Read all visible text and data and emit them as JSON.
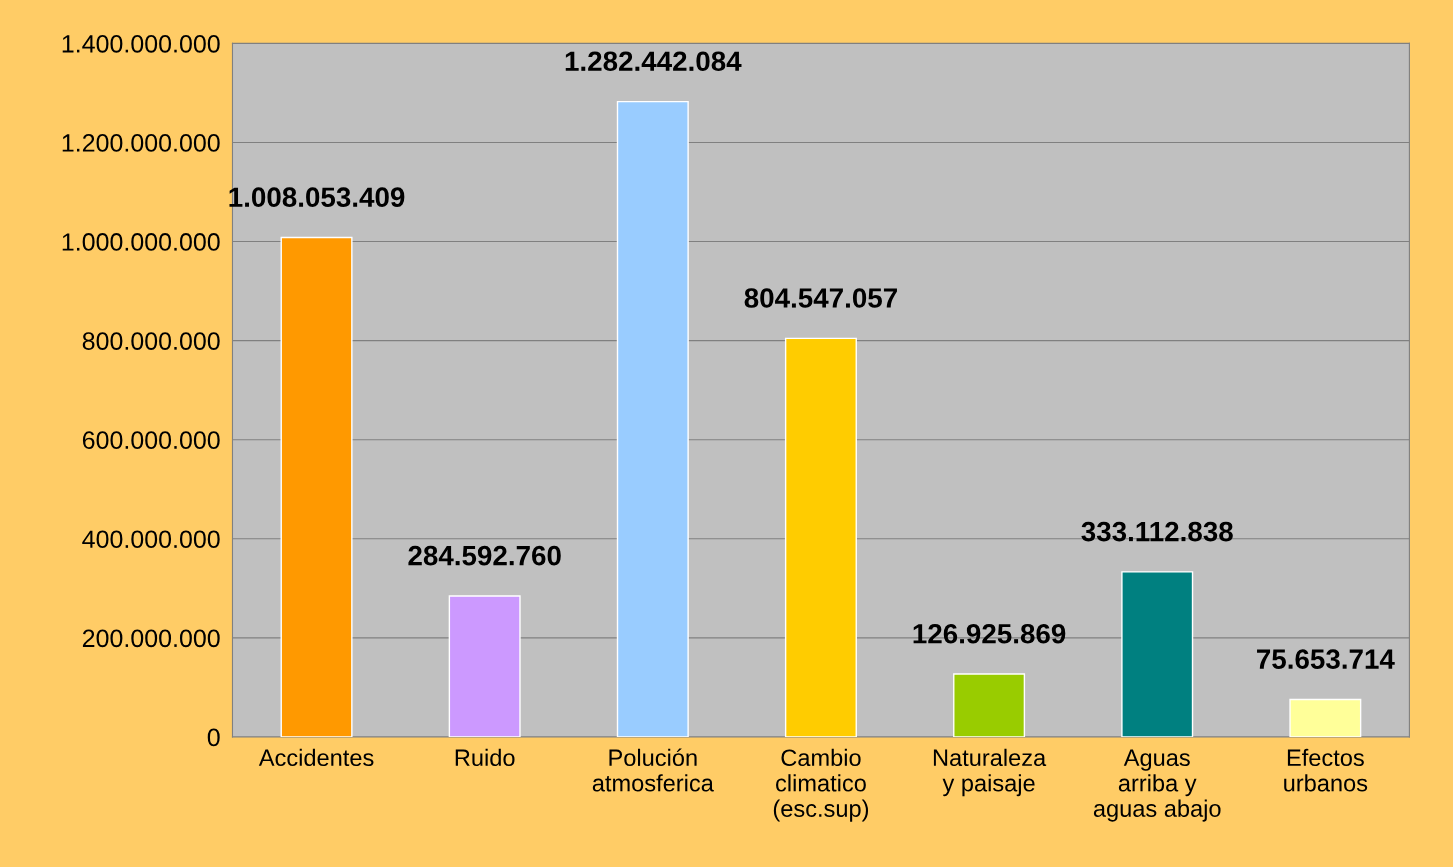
{
  "chart_data": {
    "type": "bar",
    "categories": [
      "Accidentes",
      "Ruido",
      "Polución\natmosferica",
      "Cambio\nclimatico\n(esc.sup)",
      "Naturaleza\ny paisaje",
      "Aguas\narriba y\naguas abajo",
      "Efectos\nurbanos"
    ],
    "values": [
      1008053409,
      284592760,
      1282442084,
      804547057,
      126925869,
      333112838,
      75653714
    ],
    "colors": [
      "#ff9900",
      "#cc99ff",
      "#99ccff",
      "#ffcc00",
      "#99cc00",
      "#008080",
      "#ffff99"
    ],
    "value_labels": [
      "1.008.053.409",
      "284.592.760",
      "1.282.442.084",
      "804.547.057",
      "126.925.869",
      "333.112.838",
      "75.653.714"
    ],
    "ylim": [
      0,
      1400000000
    ],
    "yticks": [
      0,
      {
        "value": 200000000,
        "label": "200.000.000"
      },
      {
        "value": 400000000,
        "label": "400.000.000"
      },
      {
        "value": 600000000,
        "label": "600.000.000"
      },
      {
        "value": 800000000,
        "label": "800.000.000"
      },
      {
        "value": 1000000000,
        "label": "1.000.000.000"
      },
      {
        "value": 1200000000,
        "label": "1.200.000.000"
      },
      {
        "value": 1400000000,
        "label": "1.400.000.000"
      }
    ],
    "grid": "y",
    "legend": false
  }
}
